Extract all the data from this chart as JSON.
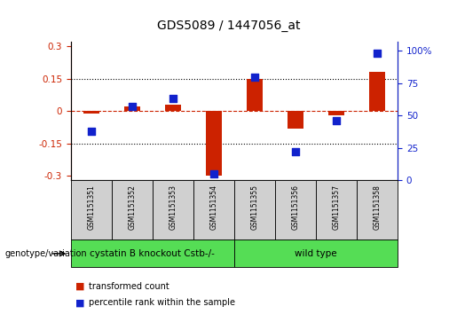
{
  "title": "GDS5089 / 1447056_at",
  "samples": [
    "GSM1151351",
    "GSM1151352",
    "GSM1151353",
    "GSM1151354",
    "GSM1151355",
    "GSM1151356",
    "GSM1151357",
    "GSM1151358"
  ],
  "red_values": [
    -0.01,
    0.02,
    0.03,
    -0.3,
    0.15,
    -0.08,
    -0.02,
    0.18
  ],
  "blue_values": [
    38,
    57,
    63,
    5,
    80,
    22,
    46,
    98
  ],
  "ylim_left": [
    -0.32,
    0.32
  ],
  "ylim_right": [
    0,
    107
  ],
  "yticks_left": [
    -0.3,
    -0.15,
    0.0,
    0.15,
    0.3
  ],
  "yticks_right": [
    0,
    25,
    50,
    75,
    100
  ],
  "ytick_labels_left": [
    "-0.3",
    "-0.15",
    "0",
    "0.15",
    "0.3"
  ],
  "ytick_labels_right": [
    "0",
    "25",
    "50",
    "75",
    "100%"
  ],
  "hlines_dotted": [
    -0.15,
    0.15
  ],
  "hline_dashed": 0.0,
  "red_color": "#cc2200",
  "blue_color": "#1122cc",
  "bar_width": 0.4,
  "dot_size": 40,
  "legend_red": "transformed count",
  "legend_blue": "percentile rank within the sample",
  "genotype_label": "genotype/variation",
  "group1_label": "cystatin B knockout Cstb-/-",
  "group2_label": "wild type",
  "bg_color_sample": "#d0d0d0",
  "green_color": "#55dd55",
  "title_fontsize": 10,
  "axis_fontsize": 7.5,
  "sample_fontsize": 5.5,
  "group_fontsize": 7.5,
  "legend_fontsize": 7
}
